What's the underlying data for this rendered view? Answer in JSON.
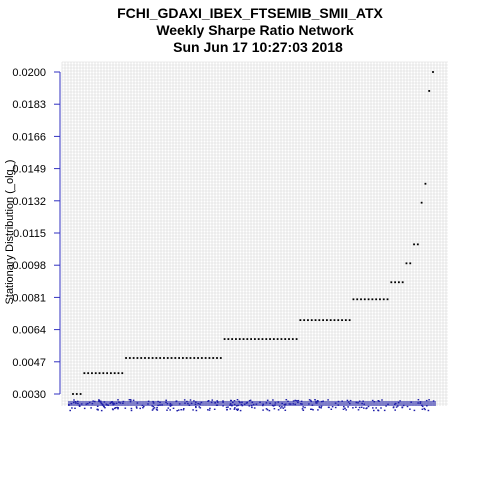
{
  "chart_data": {
    "type": "scatter",
    "title": [
      "FCHI_GDAXI_IBEX_FTSEMIB_SMII_ATX",
      "Weekly  Sharpe Ratio Network",
      "Sun Jun 17 10:27:03 2018"
    ],
    "xlabel": "",
    "ylabel": "Stationary Distribution (_olg_)",
    "ylim": [
      0.003,
      0.02
    ],
    "y_ticks": [
      "0.0200",
      "0.0183",
      "0.0166",
      "0.0149",
      "0.0132",
      "0.0115",
      "0.0098",
      "0.0081",
      "0.0064",
      "0.0047",
      "0.0030"
    ],
    "grid": true,
    "rank_range": [
      1,
      96
    ],
    "series": [
      {
        "color": "#000000",
        "steps": [
          {
            "from": 1,
            "to": 3,
            "value": 0.003
          },
          {
            "from": 4,
            "to": 14,
            "value": 0.0041
          },
          {
            "from": 15,
            "to": 40,
            "value": 0.0049
          },
          {
            "from": 41,
            "to": 60,
            "value": 0.0059
          },
          {
            "from": 61,
            "to": 74,
            "value": 0.0069
          },
          {
            "from": 75,
            "to": 84,
            "value": 0.008
          },
          {
            "from": 85,
            "to": 88,
            "value": 0.0089
          },
          {
            "from": 89,
            "to": 90,
            "value": 0.0099
          },
          {
            "from": 91,
            "to": 92,
            "value": 0.0109
          },
          {
            "from": 93,
            "to": 93,
            "value": 0.0131
          },
          {
            "from": 94,
            "to": 94,
            "value": 0.0141
          },
          {
            "from": 95,
            "to": 95,
            "value": 0.019
          },
          {
            "from": 96,
            "to": 96,
            "value": 0.02
          }
        ]
      }
    ],
    "baseline_rug": {
      "color": "#1f1fa8"
    }
  }
}
